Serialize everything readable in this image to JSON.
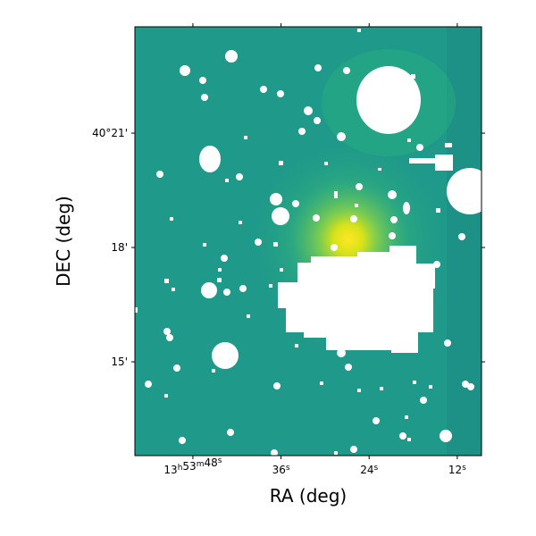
{
  "chart_data": {
    "type": "image",
    "xlabel": "RA (deg)",
    "ylabel": "DEC (deg)",
    "xlim": [
      55.9,
      8.7
    ],
    "xticks": [
      {
        "value": 48,
        "label": "13h53m48s"
      },
      {
        "value": 36,
        "label": "36s"
      },
      {
        "value": 24,
        "label": "24s"
      },
      {
        "value": 12,
        "label": "12s"
      }
    ],
    "ylim": [
      12.54,
      23.79
    ],
    "yticks": [
      {
        "value": 21,
        "label": "40°21'"
      },
      {
        "value": 18,
        "label": "18'"
      },
      {
        "value": 15,
        "label": "15'"
      }
    ]
  }
}
